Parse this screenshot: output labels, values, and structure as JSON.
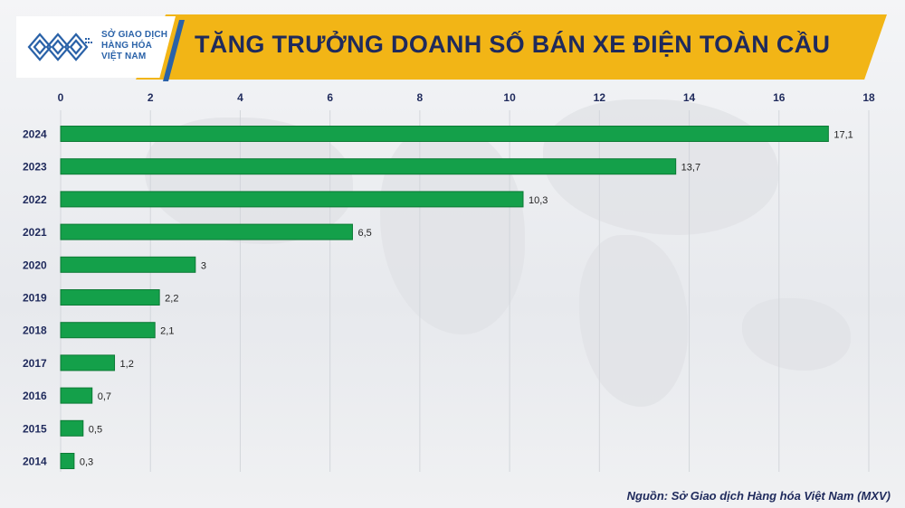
{
  "header": {
    "logo_lines": [
      "SỞ GIAO DỊCH",
      "HÀNG HÓA",
      "VIỆT NAM"
    ],
    "title": "TĂNG TRƯỞNG DOANH SỐ BÁN XE ĐIỆN TOÀN CẦU"
  },
  "source": "Nguồn: Sở Giao dịch Hàng hóa Việt Nam (MXV)",
  "colors": {
    "bar": "#14a04a",
    "bar_edge": "#0c7a35",
    "header_band": "#f2b516",
    "title": "#1f2a5c"
  },
  "chart_data": {
    "type": "bar",
    "orientation": "horizontal",
    "categories": [
      "2024",
      "2023",
      "2022",
      "2021",
      "2020",
      "2019",
      "2018",
      "2017",
      "2016",
      "2015",
      "2014"
    ],
    "values": [
      17.1,
      13.7,
      10.3,
      6.5,
      3,
      2.2,
      2.1,
      1.2,
      0.7,
      0.5,
      0.3
    ],
    "value_labels": [
      "17,1",
      "13,7",
      "10,3",
      "6,5",
      "3",
      "2,2",
      "2,1",
      "1,2",
      "0,7",
      "0,5",
      "0,3"
    ],
    "xticks": [
      0,
      2,
      4,
      6,
      8,
      10,
      12,
      14,
      16,
      18
    ],
    "xlim": [
      0,
      18
    ],
    "xaxis_position": "top",
    "grid": true,
    "title": "",
    "xlabel": "",
    "ylabel": ""
  }
}
